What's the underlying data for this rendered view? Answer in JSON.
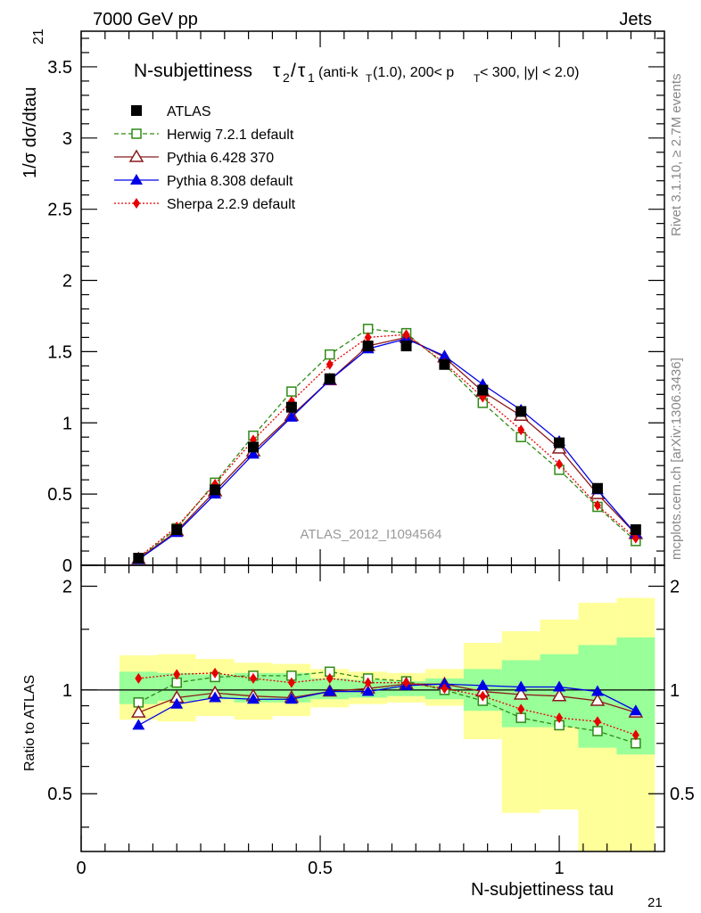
{
  "header": {
    "left": "7000 GeV pp",
    "right": "Jets"
  },
  "plot": {
    "title_main": "N-subjettiness",
    "title_cut": "(anti-k",
    "title_cut_sub": "T",
    "title_cut_rest": "(1.0), 200< p",
    "title_pt_sub": "T",
    "title_tail": " < 300, |y| < 2.0)",
    "tau2": "τ",
    "tau2_sub": "2",
    "slash": "/",
    "tau1": "τ",
    "tau1_sub": "1",
    "analysis_id": "ATLAS_2012_I1094564",
    "ylabel_main": "1/σ dσ/dtau",
    "ylabel_sub": "21",
    "ratio_ylabel": "Ratio to ATLAS",
    "xlabel_main": "N-subjettiness tau",
    "xlabel_sub": "21",
    "side_rivet": "Rivet 3.1.10, ≥ 2.7M events",
    "side_mcplots": "mcplots.cern.ch [arXiv:1306.3436]"
  },
  "chart_data": {
    "type": "line",
    "xlim": [
      0,
      1.22
    ],
    "ylim": [
      0,
      3.75
    ],
    "ratio_ylim": [
      0.34,
      2.3
    ],
    "xticks": [
      "0",
      "0.5",
      "1"
    ],
    "yticks": [
      "0",
      "0.5",
      "1",
      "1.5",
      "2",
      "2.5",
      "3",
      "3.5"
    ],
    "ratio_yticks": [
      "0.5",
      "1",
      "2"
    ],
    "x": [
      0.12,
      0.2,
      0.28,
      0.36,
      0.44,
      0.52,
      0.6,
      0.68,
      0.76,
      0.84,
      0.92,
      1.0,
      1.08,
      1.16
    ],
    "series": [
      {
        "name": "ATLAS",
        "color": "#000000",
        "marker": "square-filled",
        "style": "none",
        "values": [
          0.05,
          0.25,
          0.53,
          0.83,
          1.11,
          1.31,
          1.54,
          1.54,
          1.41,
          1.23,
          1.08,
          0.86,
          0.54,
          0.25
        ]
      },
      {
        "name": "Herwig 7.2.1 default",
        "color": "#2f8a16",
        "marker": "square-open",
        "style": "dashed",
        "values": [
          0.046,
          0.26,
          0.58,
          0.91,
          1.22,
          1.48,
          1.66,
          1.63,
          1.41,
          1.14,
          0.9,
          0.67,
          0.41,
          0.17
        ]
      },
      {
        "name": "Pythia 6.428 370",
        "color": "#8b1a1a",
        "marker": "triangle-open",
        "style": "solid",
        "values": [
          0.044,
          0.24,
          0.52,
          0.8,
          1.05,
          1.3,
          1.54,
          1.6,
          1.46,
          1.22,
          1.05,
          0.82,
          0.5,
          0.22
        ]
      },
      {
        "name": "Pythia 8.308 default",
        "color": "#0000e6",
        "marker": "triangle-filled",
        "style": "solid",
        "values": [
          0.04,
          0.23,
          0.5,
          0.78,
          1.04,
          1.3,
          1.52,
          1.59,
          1.47,
          1.27,
          1.09,
          0.87,
          0.53,
          0.22
        ]
      },
      {
        "name": "Sherpa 2.2.9 default",
        "color": "#e60000",
        "marker": "diamond-filled",
        "style": "dotted",
        "values": [
          0.054,
          0.27,
          0.57,
          0.88,
          1.15,
          1.41,
          1.6,
          1.62,
          1.42,
          1.18,
          0.95,
          0.71,
          0.42,
          0.19
        ]
      }
    ],
    "ratio": {
      "Herwig 7.2.1 default": [
        0.92,
        1.05,
        1.09,
        1.1,
        1.1,
        1.13,
        1.08,
        1.06,
        1.0,
        0.93,
        0.83,
        0.79,
        0.76,
        0.7
      ],
      "Pythia 6.428 370": [
        0.86,
        0.95,
        0.98,
        0.96,
        0.95,
        0.99,
        1.01,
        1.04,
        1.04,
        0.99,
        0.97,
        0.96,
        0.93,
        0.86
      ],
      "Pythia 8.308 default": [
        0.79,
        0.91,
        0.95,
        0.94,
        0.94,
        0.99,
        0.99,
        1.03,
        1.04,
        1.03,
        1.02,
        1.02,
        0.99,
        0.87
      ],
      "Sherpa 2.2.9 default": [
        1.08,
        1.11,
        1.12,
        1.08,
        1.05,
        1.08,
        1.05,
        1.05,
        1.01,
        0.96,
        0.88,
        0.83,
        0.81,
        0.74
      ]
    },
    "bin_edges": [
      0.08,
      0.16,
      0.24,
      0.32,
      0.4,
      0.48,
      0.56,
      0.64,
      0.72,
      0.8,
      0.88,
      0.96,
      1.04,
      1.12,
      1.2
    ],
    "band_inner": [
      [
        0.91,
        1.13
      ],
      [
        0.93,
        1.12
      ],
      [
        0.94,
        1.11
      ],
      [
        0.92,
        1.12
      ],
      [
        0.92,
        1.12
      ],
      [
        0.94,
        1.08
      ],
      [
        0.95,
        1.07
      ],
      [
        0.96,
        1.06
      ],
      [
        0.94,
        1.08
      ],
      [
        0.87,
        1.15
      ],
      [
        0.78,
        1.22
      ],
      [
        0.78,
        1.27
      ],
      [
        0.68,
        1.35
      ],
      [
        0.65,
        1.42
      ]
    ],
    "band_outer": [
      [
        0.82,
        1.26
      ],
      [
        0.81,
        1.27
      ],
      [
        0.84,
        1.23
      ],
      [
        0.82,
        1.2
      ],
      [
        0.84,
        1.19
      ],
      [
        0.89,
        1.15
      ],
      [
        0.91,
        1.13
      ],
      [
        0.92,
        1.12
      ],
      [
        0.9,
        1.15
      ],
      [
        0.72,
        1.37
      ],
      [
        0.44,
        1.48
      ],
      [
        0.45,
        1.6
      ],
      [
        0.34,
        1.79
      ],
      [
        0.34,
        1.85
      ]
    ],
    "band_colors": {
      "inner": "#99ff99",
      "outer": "#ffff99"
    }
  }
}
